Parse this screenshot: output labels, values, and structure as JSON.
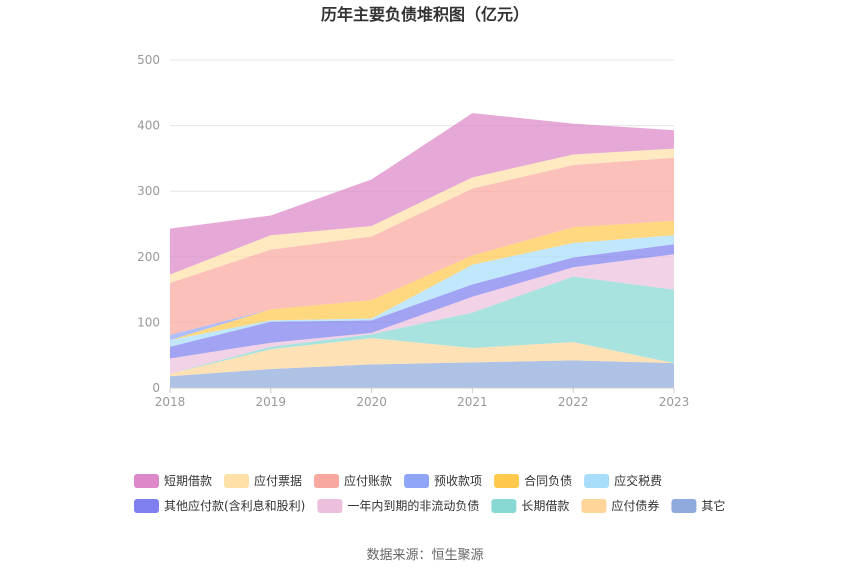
{
  "chart_data": {
    "type": "area",
    "stacked": true,
    "title": "历年主要负债堆积图（亿元）",
    "x": [
      "2018",
      "2019",
      "2020",
      "2021",
      "2022",
      "2023"
    ],
    "ylim": [
      0,
      500
    ],
    "yticks": [
      "0",
      "100",
      "200",
      "300",
      "400",
      "500"
    ],
    "grid": true,
    "legend_position": "bottom",
    "series": [
      {
        "name": "其它",
        "color": "#8faadc",
        "values": [
          18,
          29,
          36,
          39,
          42,
          38
        ]
      },
      {
        "name": "应付债券",
        "color": "#ffd59a",
        "values": [
          4,
          30,
          40,
          22,
          28,
          0
        ]
      },
      {
        "name": "长期借款",
        "color": "#88d8d4",
        "values": [
          0,
          4,
          6,
          54,
          100,
          112
        ]
      },
      {
        "name": "一年内到期的非流动负债",
        "color": "#ecc0dc",
        "values": [
          23,
          6,
          2,
          24,
          14,
          54
        ]
      },
      {
        "name": "其他应付款(含利息和股利)",
        "color": "#7f7ff0",
        "values": [
          18,
          32,
          19,
          19,
          15,
          15
        ]
      },
      {
        "name": "应交税费",
        "color": "#a8def9",
        "values": [
          10,
          2,
          3,
          30,
          22,
          14
        ]
      },
      {
        "name": "合同负债",
        "color": "#ffc94d",
        "values": [
          0,
          17,
          28,
          14,
          24,
          22
        ]
      },
      {
        "name": "预收款项",
        "color": "#8fa6f8",
        "values": [
          8,
          0,
          0,
          0,
          0,
          0
        ]
      },
      {
        "name": "应付账款",
        "color": "#f9a8a0",
        "values": [
          79,
          91,
          97,
          102,
          95,
          96
        ]
      },
      {
        "name": "应付票据",
        "color": "#ffe1a8",
        "values": [
          13,
          22,
          16,
          17,
          16,
          14
        ]
      },
      {
        "name": "短期借款",
        "color": "#dd88c8",
        "values": [
          70,
          30,
          71,
          98,
          47,
          28
        ]
      }
    ],
    "legend_order": [
      "短期借款",
      "应付票据",
      "应付账款",
      "预收款项",
      "合同负债",
      "应交税费",
      "其他应付款(含利息和股利)",
      "一年内到期的非流动负债",
      "长期借款",
      "应付债券",
      "其它"
    ]
  },
  "source_label": "数据来源：恒生聚源"
}
